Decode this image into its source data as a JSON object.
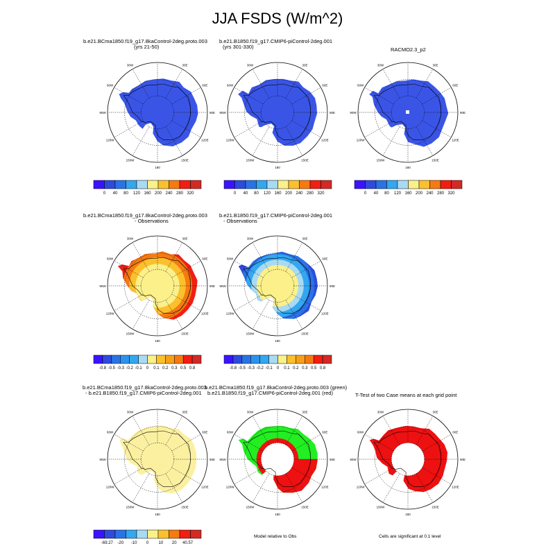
{
  "figure": {
    "title": "JJA FSDS (W/m^2)",
    "lon_labels": [
      "0",
      "30E",
      "60E",
      "90E",
      "120E",
      "150E",
      "180",
      "150W",
      "120W",
      "90W",
      "60W",
      "30W"
    ]
  },
  "panels": [
    {
      "title": "b.e21.BCma1850.f19_g17.8kaControl-2deg.proto.003",
      "subtitle": "(yrs 21-50)",
      "fill": "abs_blue"
    },
    {
      "title": "b.e21.B1850.f19_g17.CMIP6-piControl-2deg.001",
      "subtitle": "(yrs 301-330)",
      "fill": "abs_blue"
    },
    {
      "title": "RACMO2.3_p2",
      "subtitle": "",
      "fill": "abs_blue"
    },
    {
      "title": "b.e21.BCma1850.f19_g17.8kaControl-2deg.proto.003",
      "subtitle": "- Observations",
      "fill": "rings_warm"
    },
    {
      "title": "b.e21.B1850.f19_g17.CMIP6-piControl-2deg.001",
      "subtitle": "- Observations",
      "fill": "rings_cool"
    },
    {
      "title": "b.e21.BCma1850.f19_g17.8kaControl-2deg.proto.003",
      "subtitle": "- b.e21.B1850.f19_g17.CMIP6-piControl-2deg.001",
      "fill": "flat_yellow"
    },
    {
      "title": "b.e21.BCma1850.f19_g17.8kaControl-2deg.proto.003 (green)",
      "subtitle": "b.e21.B1850.f19_g17.CMIP6-piControl-2deg.001 (red)",
      "fill": "green_red"
    },
    {
      "title": "T-Test of two Case means at each grid point",
      "subtitle": "",
      "fill": "ttest_red"
    }
  ],
  "colorbars": {
    "abs": {
      "labels": [
        "0",
        "40",
        "80",
        "120",
        "160",
        "200",
        "240",
        "280",
        "320"
      ],
      "colors": [
        "#3a14ff",
        "#2d4cdc",
        "#2a73e6",
        "#33a7f0",
        "#a8daf3",
        "#fbf08a",
        "#fbc02d",
        "#f67a12",
        "#f21e12",
        "#d22a24"
      ]
    },
    "diff": {
      "labels": [
        "-0.8",
        "-0.5",
        "-0.3",
        "-0.2",
        "-0.1",
        "0",
        "0.1",
        "0.2",
        "0.3",
        "0.5",
        "0.8"
      ],
      "colors": [
        "#3a14ff",
        "#2d4cdc",
        "#2a73e6",
        "#2d93ea",
        "#33a7f0",
        "#a8daf3",
        "#fbf08a",
        "#fbc02d",
        "#f6a01a",
        "#f67a12",
        "#f21e12",
        "#d22a24"
      ]
    },
    "diff2": {
      "labels": [
        "-69.27",
        "-20",
        "-10",
        "0",
        "10",
        "20",
        "40.57"
      ],
      "colors": [
        "#3a14ff",
        "#2d4cdc",
        "#2a73e6",
        "#33a7f0",
        "#a8daf3",
        "#fbf08a",
        "#fbc02d",
        "#f67a12",
        "#f21e12",
        "#d22a24"
      ]
    }
  },
  "captions": {
    "model_relative": "Model relative to Obs",
    "significance": "Cells are significant at 0.1 level"
  },
  "colors": {
    "blue": "#3a55e6",
    "green": "#22ee22",
    "red": "#ee1111",
    "yellow_pale": "#fbf0a0",
    "warm_rings": [
      "#d22a24",
      "#f21e12",
      "#f67a12",
      "#fbc02d",
      "#fbf08a"
    ],
    "cool_rings": [
      "#3a14ff",
      "#2d4cdc",
      "#2a73e6",
      "#33a7f0",
      "#a8daf3",
      "#fbf08a"
    ]
  }
}
